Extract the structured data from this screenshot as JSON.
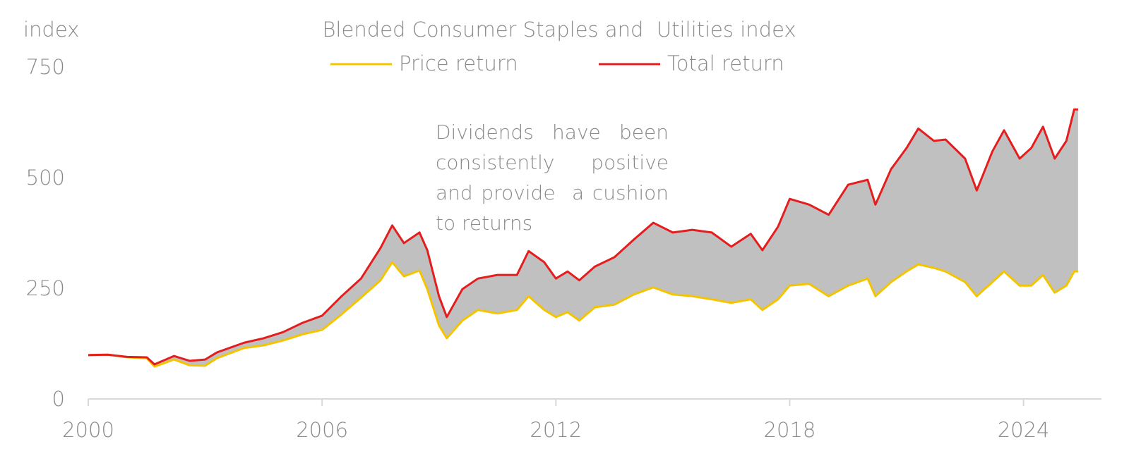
{
  "chart_data": {
    "type": "line",
    "title": "Blended Consumer Staples and  Utilities index",
    "y_label": "index",
    "annotation": "Dividends have been consistently positive and provide  a cushion to returns",
    "x": [
      2000.0,
      2000.5,
      2001.0,
      2001.5,
      2001.7,
      2002.2,
      2002.6,
      2003.0,
      2003.3,
      2004.0,
      2004.5,
      2005.0,
      2005.5,
      2006.0,
      2006.5,
      2007.0,
      2007.5,
      2007.8,
      2008.1,
      2008.5,
      2008.7,
      2009.0,
      2009.2,
      2009.6,
      2010.0,
      2010.5,
      2011.0,
      2011.3,
      2011.7,
      2012.0,
      2012.3,
      2012.6,
      2013.0,
      2013.5,
      2014.0,
      2014.5,
      2015.0,
      2015.5,
      2016.0,
      2016.5,
      2017.0,
      2017.3,
      2017.7,
      2018.0,
      2018.5,
      2019.0,
      2019.5,
      2020.0,
      2020.2,
      2020.6,
      2021.0,
      2021.3,
      2021.7,
      2022.0,
      2022.5,
      2022.8,
      2023.2,
      2023.5,
      2023.9,
      2024.2,
      2024.5,
      2024.8,
      2025.1,
      2025.3,
      2025.4
    ],
    "series": [
      {
        "name": "Price return",
        "color": "#f5c400",
        "values": [
          99,
          100,
          94,
          92,
          73,
          89,
          76,
          75,
          92,
          115,
          121,
          132,
          146,
          156,
          191,
          229,
          268,
          309,
          277,
          290,
          248,
          166,
          137,
          177,
          201,
          193,
          201,
          232,
          201,
          185,
          196,
          177,
          207,
          213,
          236,
          252,
          236,
          232,
          225,
          217,
          225,
          201,
          225,
          256,
          260,
          232,
          256,
          272,
          232,
          264,
          288,
          304,
          296,
          288,
          264,
          232,
          264,
          288,
          256,
          256,
          280,
          240,
          256,
          288,
          288
        ]
      },
      {
        "name": "Total return",
        "color": "#e41e1e",
        "values": [
          99,
          100,
          95,
          94,
          78,
          97,
          86,
          89,
          105,
          127,
          137,
          151,
          172,
          188,
          232,
          272,
          341,
          392,
          352,
          376,
          336,
          232,
          185,
          248,
          272,
          280,
          280,
          334,
          309,
          272,
          288,
          268,
          299,
          320,
          360,
          398,
          376,
          382,
          376,
          344,
          373,
          336,
          389,
          452,
          439,
          416,
          484,
          495,
          439,
          519,
          567,
          611,
          583,
          586,
          543,
          471,
          559,
          607,
          543,
          567,
          615,
          543,
          583,
          654,
          654
        ]
      }
    ],
    "fill_between_color": "#c0c0c0",
    "xlim": [
      2000,
      2026
    ],
    "xticks": [
      2000,
      2006,
      2012,
      2018,
      2024
    ],
    "ylim": [
      0,
      750
    ],
    "yticks": [
      0,
      250,
      500,
      750
    ],
    "grid": false
  }
}
